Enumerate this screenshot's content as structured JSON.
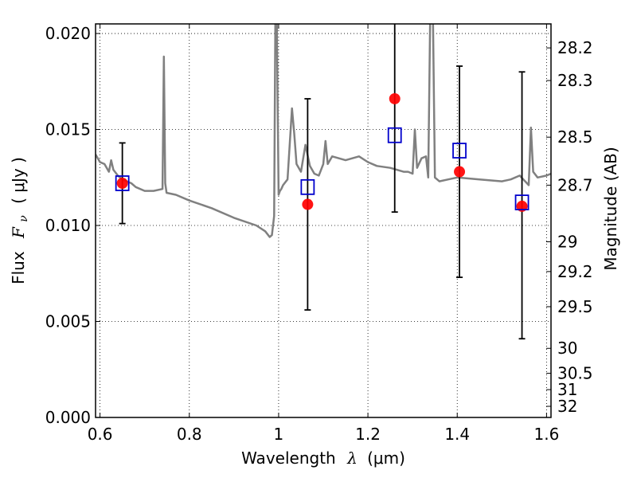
{
  "chart_data": {
    "type": "scatter",
    "xlabel": "Wavelength",
    "xlabel_symbol": "λ",
    "xlabel_unit": "(μm)",
    "ylabel": "Flux",
    "ylabel_symbol": "F",
    "ylabel_subscript": "ν",
    "ylabel_unit": "( μJy )",
    "y2label": "Magnitude (AB)",
    "xlim": [
      0.59,
      1.61
    ],
    "ylim": [
      0.0,
      0.0205
    ],
    "grid": true,
    "grid_style": "dotted",
    "x_ticks": [
      0.6,
      0.8,
      1.0,
      1.2,
      1.4,
      1.6
    ],
    "x_tick_labels": [
      "0.6",
      "0.8",
      "1",
      "1.2",
      "1.4",
      "1.6"
    ],
    "y_ticks": [
      0.0,
      0.005,
      0.01,
      0.015,
      0.02
    ],
    "y_tick_labels": [
      "0.000",
      "0.005",
      "0.010",
      "0.015",
      "0.020"
    ],
    "y2_ticks": [
      {
        "label": "28.2",
        "flux": 0.01925
      },
      {
        "label": "28.3",
        "flux": 0.01755
      },
      {
        "label": "28.5",
        "flux": 0.0146
      },
      {
        "label": "28.7",
        "flux": 0.0121
      },
      {
        "label": "29",
        "flux": 0.00915
      },
      {
        "label": "29.2",
        "flux": 0.0076
      },
      {
        "label": "29.5",
        "flux": 0.00577
      },
      {
        "label": "30",
        "flux": 0.0036
      },
      {
        "label": "30.5",
        "flux": 0.0023
      },
      {
        "label": "31",
        "flux": 0.00145
      },
      {
        "label": "32",
        "flux": 0.00058
      }
    ],
    "series": [
      {
        "kind": "line",
        "color": "#808080",
        "x": [
          0.59,
          0.6,
          0.61,
          0.62,
          0.625,
          0.63,
          0.64,
          0.65,
          0.66,
          0.67,
          0.68,
          0.7,
          0.72,
          0.74,
          0.743,
          0.746,
          0.749,
          0.75,
          0.77,
          0.8,
          0.85,
          0.9,
          0.95,
          0.97,
          0.98,
          0.985,
          0.99,
          0.993,
          0.996,
          1.0,
          1.003,
          1.006,
          1.01,
          1.02,
          1.03,
          1.035,
          1.04,
          1.05,
          1.06,
          1.07,
          1.08,
          1.09,
          1.1,
          1.105,
          1.11,
          1.12,
          1.15,
          1.18,
          1.2,
          1.22,
          1.25,
          1.28,
          1.29,
          1.3,
          1.305,
          1.31,
          1.32,
          1.33,
          1.335,
          1.34,
          1.345,
          1.35,
          1.36,
          1.38,
          1.4,
          1.45,
          1.5,
          1.52,
          1.54,
          1.56,
          1.565,
          1.57,
          1.58,
          1.6,
          1.61
        ],
        "y": [
          0.0137,
          0.0133,
          0.0132,
          0.0128,
          0.0134,
          0.0129,
          0.0126,
          0.0124,
          0.0123,
          0.0122,
          0.012,
          0.0118,
          0.0118,
          0.0119,
          0.0188,
          0.0122,
          0.0117,
          0.0117,
          0.0116,
          0.0113,
          0.0109,
          0.0104,
          0.01,
          0.0097,
          0.0094,
          0.0095,
          0.0105,
          0.022,
          0.0205,
          0.0116,
          0.0118,
          0.0119,
          0.0121,
          0.0124,
          0.0161,
          0.0148,
          0.0132,
          0.0128,
          0.0142,
          0.0131,
          0.0127,
          0.0126,
          0.0132,
          0.0144,
          0.0132,
          0.0136,
          0.0134,
          0.0136,
          0.0133,
          0.0131,
          0.013,
          0.0128,
          0.0128,
          0.0127,
          0.015,
          0.013,
          0.0135,
          0.0136,
          0.0125,
          0.022,
          0.022,
          0.0125,
          0.0123,
          0.0124,
          0.0125,
          0.0124,
          0.0123,
          0.0124,
          0.0126,
          0.0121,
          0.0151,
          0.0128,
          0.0125,
          0.0126,
          0.0127
        ]
      },
      {
        "kind": "points",
        "marker": "circle",
        "color": "#ff0000",
        "x": [
          0.65,
          1.065,
          1.26,
          1.405,
          1.545
        ],
        "y": [
          0.0122,
          0.0111,
          0.0166,
          0.0128,
          0.011
        ],
        "yerr_low": [
          0.0101,
          0.0056,
          0.0107,
          0.0073,
          0.0041
        ],
        "yerr_high": [
          0.0143,
          0.0166,
          0.0206,
          0.0183,
          0.018
        ]
      },
      {
        "kind": "points",
        "marker": "square",
        "color": "#0000cc",
        "x": [
          0.65,
          1.065,
          1.26,
          1.405,
          1.545
        ],
        "y": [
          0.0122,
          0.012,
          0.0147,
          0.0139,
          0.0112
        ]
      }
    ]
  }
}
